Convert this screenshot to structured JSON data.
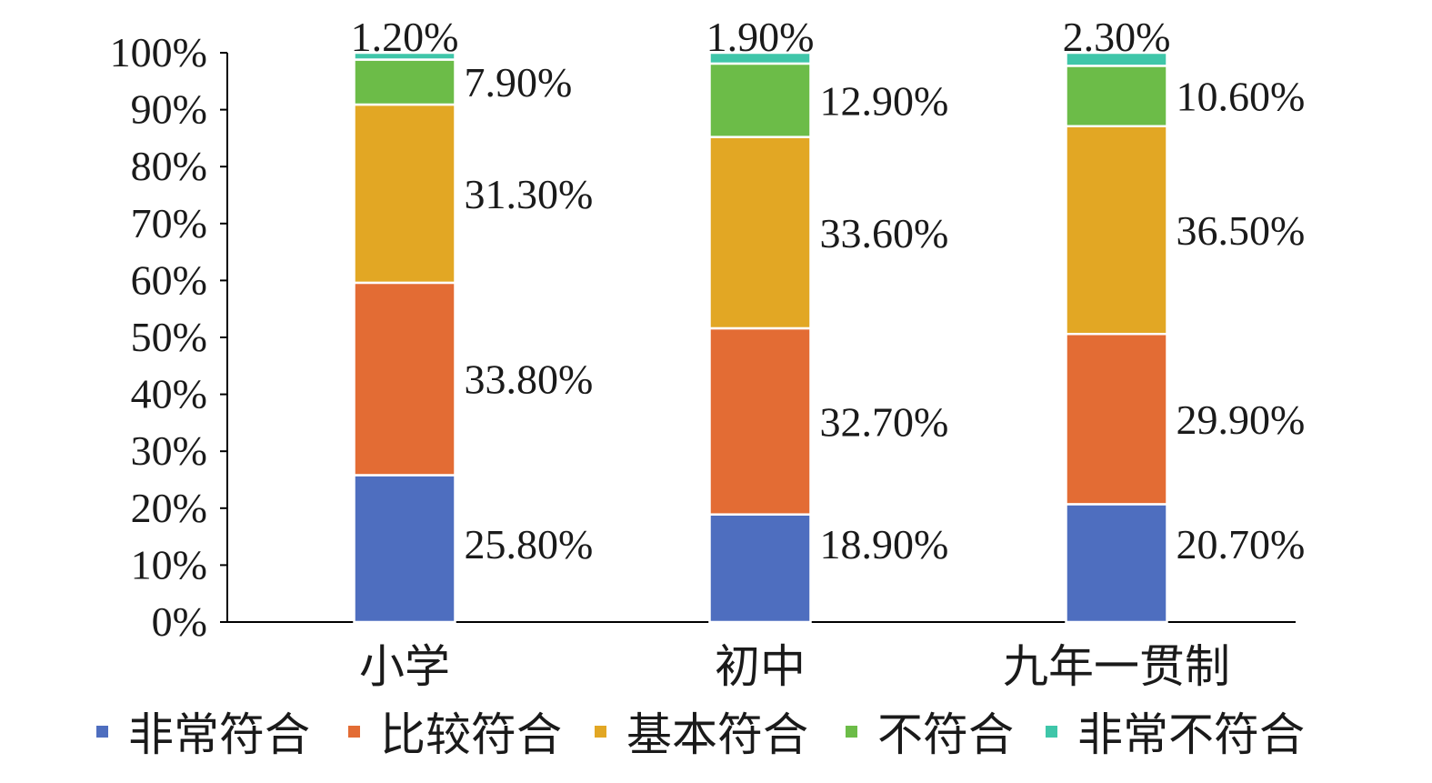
{
  "chart_data": {
    "type": "bar",
    "stacked": true,
    "categories": [
      "小学",
      "初中",
      "九年一贯制"
    ],
    "series": [
      {
        "name": "非常符合",
        "color": "#4e6ebf",
        "values": [
          25.8,
          18.9,
          20.7
        ],
        "labels": [
          "25.80%",
          "18.90%",
          "20.70%"
        ]
      },
      {
        "name": "比较符合",
        "color": "#e36c34",
        "values": [
          33.8,
          32.7,
          29.9
        ],
        "labels": [
          "33.80%",
          "32.70%",
          "29.90%"
        ]
      },
      {
        "name": "基本符合",
        "color": "#e2a724",
        "values": [
          31.3,
          33.6,
          36.5
        ],
        "labels": [
          "31.30%",
          "33.60%",
          "36.50%"
        ]
      },
      {
        "name": "不符合",
        "color": "#6cbc48",
        "values": [
          7.9,
          12.9,
          10.6
        ],
        "labels": [
          "7.90%",
          "12.90%",
          "10.60%"
        ]
      },
      {
        "name": "非常不符合",
        "color": "#3fc6a9",
        "values": [
          1.2,
          1.9,
          2.3
        ],
        "labels": [
          "1.20%",
          "1.90%",
          "2.30%"
        ]
      }
    ],
    "yticks": [
      "0%",
      "10%",
      "20%",
      "30%",
      "40%",
      "50%",
      "60%",
      "70%",
      "80%",
      "90%",
      "100%"
    ],
    "ylim": [
      0,
      100
    ],
    "title": "",
    "xlabel": "",
    "ylabel": "",
    "legend_position": "bottom",
    "grid": false
  }
}
